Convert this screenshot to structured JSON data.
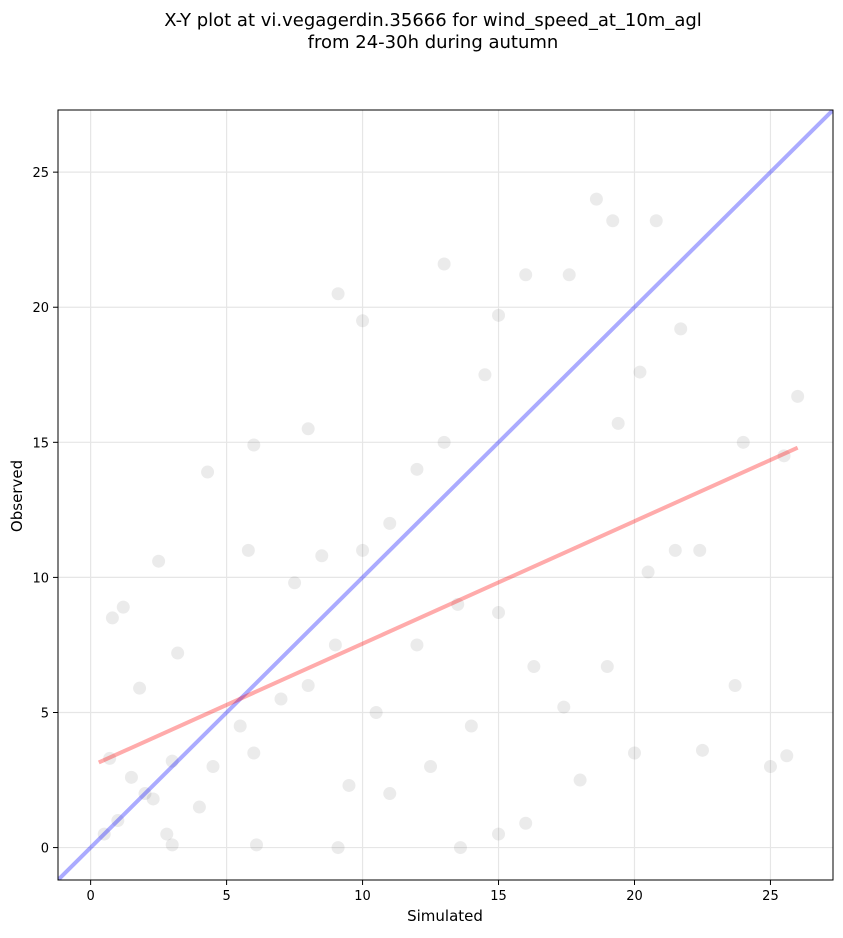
{
  "chart_data": {
    "type": "scatter",
    "title_line1": "X-Y plot at vi.vegagerdin.35666 for wind_speed_at_10m_agl",
    "title_line2": "from 24-30h during autumn",
    "xlabel": "Simulated",
    "ylabel": "Observed",
    "xlim": [
      -1.2,
      27.3
    ],
    "ylim": [
      -1.2,
      27.3
    ],
    "xticks": [
      0,
      5,
      10,
      15,
      20,
      25
    ],
    "yticks": [
      0,
      5,
      10,
      15,
      20,
      25
    ],
    "xtick_labels": [
      "0",
      "5",
      "10",
      "15",
      "20",
      "25"
    ],
    "ytick_labels": [
      "0",
      "5",
      "10",
      "15",
      "20",
      "25"
    ],
    "grid": true,
    "point_color": "#000000",
    "point_opacity": 0.08,
    "identity_line": {
      "color": "#0000ff",
      "opacity": 0.33
    },
    "regression_line": {
      "color": "#ff0000",
      "opacity": 0.33,
      "x": [
        0.3,
        26.0
      ],
      "y": [
        3.15,
        14.8
      ]
    },
    "points_sample": [
      [
        2.0,
        2.0
      ],
      [
        2.3,
        1.8
      ],
      [
        1.5,
        2.6
      ],
      [
        3.0,
        3.2
      ],
      [
        4.0,
        1.5
      ],
      [
        4.5,
        3.0
      ],
      [
        5.5,
        4.5
      ],
      [
        6.0,
        3.5
      ],
      [
        7.0,
        5.5
      ],
      [
        8.0,
        6.0
      ],
      [
        9.0,
        7.5
      ],
      [
        10.0,
        11.0
      ],
      [
        11.0,
        12.0
      ],
      [
        12.0,
        14.0
      ],
      [
        13.0,
        15.0
      ],
      [
        14.5,
        17.5
      ],
      [
        15.0,
        19.7
      ],
      [
        16.0,
        21.2
      ],
      [
        18.6,
        24.0
      ],
      [
        20.8,
        23.2
      ],
      [
        9.1,
        20.5
      ],
      [
        10.0,
        19.5
      ],
      [
        13.0,
        21.6
      ],
      [
        0.8,
        8.5
      ],
      [
        1.2,
        8.9
      ],
      [
        2.5,
        10.6
      ],
      [
        4.3,
        13.9
      ],
      [
        6.0,
        14.9
      ],
      [
        8.0,
        15.5
      ],
      [
        26.0,
        16.7
      ],
      [
        25.5,
        14.5
      ],
      [
        24.0,
        15.0
      ],
      [
        25.0,
        3.0
      ],
      [
        25.6,
        3.4
      ],
      [
        23.7,
        6.0
      ],
      [
        22.5,
        3.6
      ],
      [
        20.0,
        3.5
      ],
      [
        18.0,
        2.5
      ],
      [
        16.0,
        0.9
      ],
      [
        15.0,
        0.5
      ],
      [
        13.6,
        0.0
      ],
      [
        9.1,
        0.0
      ],
      [
        6.1,
        0.1
      ],
      [
        3.0,
        0.1
      ],
      [
        0.5,
        0.5
      ],
      [
        19.4,
        15.7
      ],
      [
        21.7,
        19.2
      ],
      [
        20.2,
        17.6
      ],
      [
        17.6,
        21.2
      ],
      [
        19.2,
        23.2
      ],
      [
        12.0,
        7.5
      ],
      [
        13.5,
        9.0
      ],
      [
        15.0,
        8.7
      ],
      [
        16.3,
        6.7
      ],
      [
        17.4,
        5.2
      ],
      [
        19.0,
        6.7
      ],
      [
        20.5,
        10.2
      ],
      [
        21.5,
        11.0
      ],
      [
        22.4,
        11.0
      ],
      [
        11.0,
        2.0
      ],
      [
        12.5,
        3.0
      ],
      [
        14.0,
        4.5
      ],
      [
        7.5,
        9.8
      ],
      [
        8.5,
        10.8
      ],
      [
        5.8,
        11.0
      ],
      [
        3.2,
        7.2
      ],
      [
        1.8,
        5.9
      ],
      [
        0.7,
        3.3
      ],
      [
        1.0,
        1.0
      ],
      [
        2.8,
        0.5
      ],
      [
        10.5,
        5.0
      ],
      [
        9.5,
        2.3
      ]
    ]
  }
}
